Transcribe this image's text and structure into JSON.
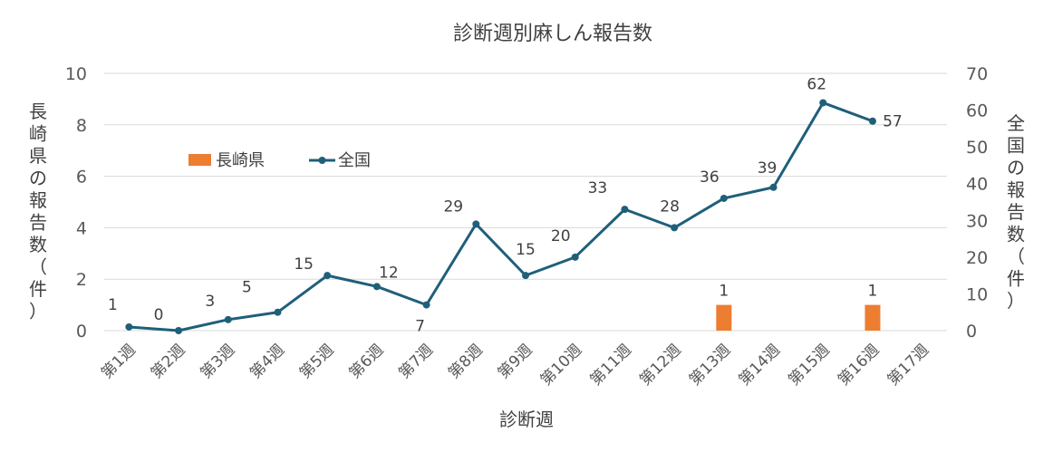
{
  "chart_data": {
    "type": "bar+line",
    "title": "診断週別麻しん報告数",
    "xlabel": "診断週",
    "ylabel_left": "長崎県の報告数（件）",
    "ylabel_right": "全国の報告数（件）",
    "categories": [
      "第1週",
      "第2週",
      "第3週",
      "第4週",
      "第5週",
      "第6週",
      "第7週",
      "第8週",
      "第9週",
      "第10週",
      "第11週",
      "第12週",
      "第13週",
      "第14週",
      "第15週",
      "第16週",
      "第17週"
    ],
    "ylim_left": [
      0,
      10
    ],
    "yticks_left": [
      0,
      2,
      4,
      6,
      8,
      10
    ],
    "ylim_right": [
      0,
      70
    ],
    "yticks_right": [
      0,
      10,
      20,
      30,
      40,
      50,
      60,
      70
    ],
    "series": [
      {
        "name": "長崎県",
        "type": "bar",
        "axis": "left",
        "color": "#ED7D31",
        "values": [
          null,
          null,
          null,
          null,
          null,
          null,
          null,
          null,
          null,
          null,
          null,
          null,
          1,
          null,
          null,
          1,
          null
        ]
      },
      {
        "name": "全国",
        "type": "line",
        "axis": "right",
        "color": "#1F5F7A",
        "values": [
          1,
          0,
          3,
          5,
          15,
          12,
          7,
          29,
          15,
          20,
          33,
          28,
          36,
          39,
          62,
          57,
          null
        ]
      }
    ],
    "legend": "upper-left-inside",
    "grid": true
  }
}
